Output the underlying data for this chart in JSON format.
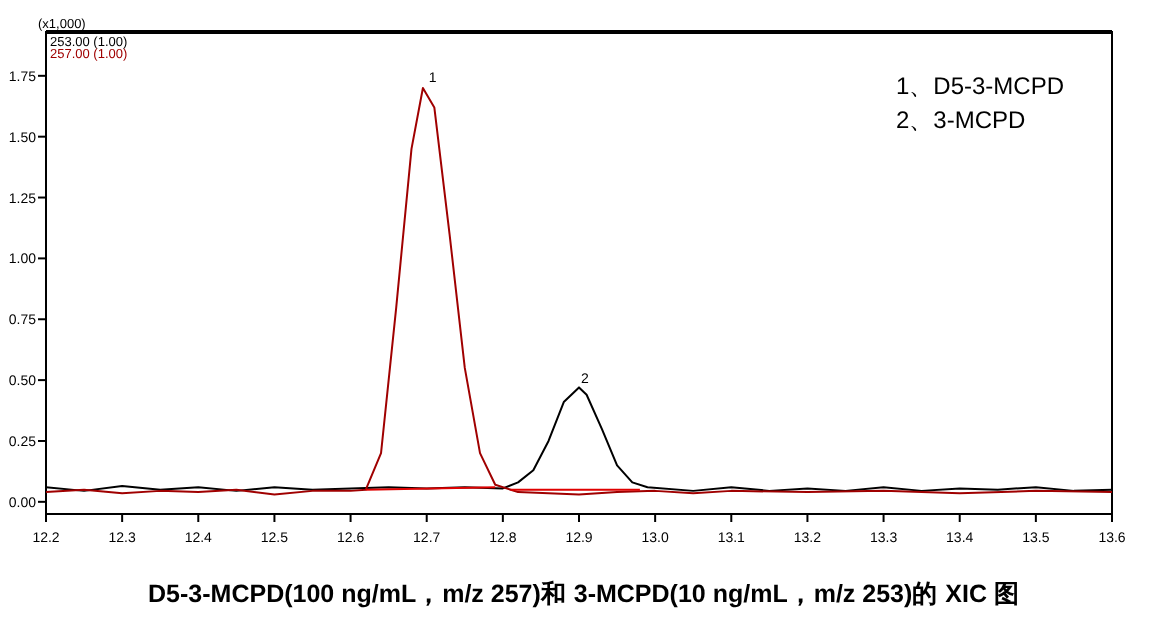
{
  "chart_data": {
    "type": "line",
    "title": "D5-3-MCPD(100 ng/mL，m/z 257)和 3-MCPD(10 ng/mL，m/z 253)的 XIC 图",
    "annotations": [
      "(x1,000)",
      "1、D5-3-MCPD",
      "2、3-MCPD",
      {
        "text": "1",
        "x": 12.7,
        "y": 1.71
      },
      {
        "text": "2",
        "x": 12.9,
        "y": 0.47
      }
    ],
    "xlim": [
      12.2,
      13.6
    ],
    "ylim": [
      -0.05,
      1.93
    ],
    "xticks": [
      12.2,
      12.3,
      12.4,
      12.5,
      12.6,
      12.7,
      12.8,
      12.9,
      {
        "value": 13,
        "label": "13.0"
      },
      13.1,
      13.2,
      13.3,
      13.4,
      13.5,
      13.6
    ],
    "yticks": [
      {
        "value": 0,
        "label": "0.00"
      },
      {
        "value": 0.25,
        "label": "0.25"
      },
      {
        "value": 0.5,
        "label": "0.50"
      },
      {
        "value": 0.75,
        "label": "0.75"
      },
      {
        "value": 1,
        "label": "1.00"
      },
      {
        "value": 1.25,
        "label": "1.25"
      },
      {
        "value": 1.5,
        "label": "1.50"
      },
      {
        "value": 1.75,
        "label": "1.75"
      }
    ],
    "legend": "top left",
    "grid": false,
    "series": [
      {
        "name": "253.00 (1.00)",
        "color": "#000000",
        "x": [
          12.2,
          12.25,
          12.3,
          12.35,
          12.4,
          12.45,
          12.5,
          12.55,
          12.6,
          12.65,
          12.7,
          12.75,
          12.8,
          12.82,
          12.84,
          12.86,
          12.88,
          12.9,
          12.91,
          12.93,
          12.95,
          12.97,
          12.99,
          13.05,
          13.1,
          13.15,
          13.2,
          13.25,
          13.3,
          13.35,
          13.4,
          13.45,
          13.5,
          13.55,
          13.6
        ],
        "values": [
          0.06,
          0.045,
          0.065,
          0.05,
          0.06,
          0.045,
          0.06,
          0.05,
          0.055,
          0.06,
          0.055,
          0.06,
          0.055,
          0.08,
          0.13,
          0.25,
          0.41,
          0.47,
          0.44,
          0.3,
          0.15,
          0.08,
          0.06,
          0.045,
          0.06,
          0.045,
          0.055,
          0.045,
          0.06,
          0.045,
          0.055,
          0.05,
          0.06,
          0.045,
          0.05
        ]
      },
      {
        "name": "257.00 (1.00)",
        "color": "#a00000",
        "x": [
          12.2,
          12.25,
          12.3,
          12.35,
          12.4,
          12.45,
          12.5,
          12.55,
          12.6,
          12.62,
          12.64,
          12.66,
          12.68,
          12.695,
          12.71,
          12.73,
          12.75,
          12.77,
          12.79,
          12.82,
          12.86,
          12.9,
          12.95,
          13.0,
          13.05,
          13.1,
          13.2,
          13.3,
          13.4,
          13.5,
          13.6
        ],
        "values": [
          0.04,
          0.05,
          0.035,
          0.045,
          0.04,
          0.05,
          0.03,
          0.045,
          0.045,
          0.05,
          0.2,
          0.8,
          1.45,
          1.7,
          1.62,
          1.1,
          0.55,
          0.2,
          0.07,
          0.04,
          0.035,
          0.03,
          0.04,
          0.045,
          0.035,
          0.045,
          0.04,
          0.045,
          0.035,
          0.045,
          0.04
        ]
      },
      {
        "color": "#e00000",
        "x": [
          12.62,
          12.79
        ],
        "values": [
          0.05,
          0.06
        ]
      },
      {
        "color": "#e00000",
        "x": [
          12.81,
          12.98
        ],
        "values": [
          0.05,
          0.05
        ]
      }
    ]
  }
}
